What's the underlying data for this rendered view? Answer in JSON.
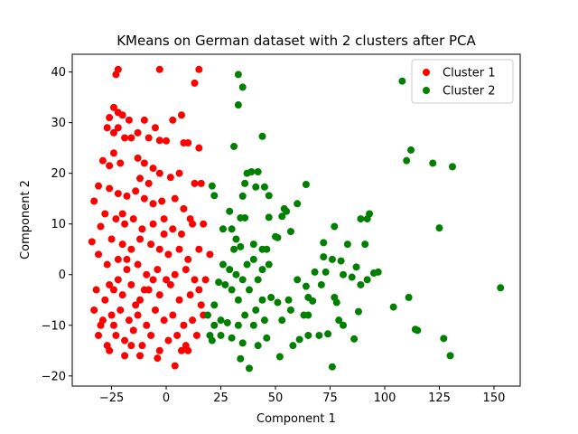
{
  "chart_data": {
    "type": "scatter",
    "title": "KMeans on German dataset with 2 clusters after PCA",
    "xlabel": "Component 1",
    "ylabel": "Component 2",
    "xlim": [
      -43,
      162
    ],
    "ylim": [
      -22,
      43.5
    ],
    "xticks": [
      {
        "value": -25,
        "label": "−25"
      },
      0,
      25,
      50,
      75,
      100,
      125,
      150
    ],
    "yticks": [
      {
        "value": -20,
        "label": "−20"
      },
      {
        "value": -10,
        "label": "−10"
      },
      0,
      10,
      20,
      30,
      40
    ],
    "legend": "upper right",
    "series": [
      {
        "name": "Cluster 1",
        "color": "#ff0000",
        "x": [
          -22,
          -23,
          -3,
          15,
          13,
          -24,
          -22,
          -20,
          -26,
          -27,
          -24,
          -22,
          -17,
          -10,
          -5,
          3,
          7,
          -19,
          -16,
          -13,
          -8,
          -3,
          0,
          8,
          10,
          15,
          -29,
          -26,
          -21,
          -13,
          -10,
          -6,
          -3,
          2,
          6,
          13,
          16,
          -31,
          -26,
          -22,
          -18,
          -14,
          -10,
          -6,
          -2,
          4,
          8,
          11,
          -33,
          -28,
          -23,
          -19,
          -15,
          -11,
          -6,
          -1,
          3,
          7,
          12,
          17,
          -30,
          -25,
          -20,
          -16,
          -12,
          -7,
          -3,
          1,
          6,
          10,
          15,
          -34,
          -31,
          -27,
          -22,
          -18,
          -13,
          -9,
          -4,
          0,
          4,
          9,
          13,
          18,
          -32,
          -28,
          -24,
          -20,
          -16,
          -12,
          -8,
          -3,
          2,
          6,
          11,
          16,
          -33,
          -29,
          -25,
          -21,
          -17,
          -13,
          -9,
          -5,
          -1,
          3,
          8,
          12,
          17,
          -31,
          -27,
          -23,
          -19,
          -15,
          -11,
          -7,
          -3,
          1,
          5,
          9,
          14,
          -26,
          -19,
          -12,
          -4,
          4,
          10,
          -30,
          -24,
          -14,
          -10,
          -6,
          -18,
          -22,
          -26,
          -20,
          -8,
          -24,
          -12,
          -1,
          -16,
          15,
          20,
          7
        ],
        "y": [
          40.5,
          39.5,
          40.5,
          40.5,
          37.8,
          33,
          32,
          31.5,
          31,
          29,
          28,
          29,
          30.5,
          30.5,
          29,
          30.5,
          31.5,
          27,
          27,
          28,
          27,
          26.5,
          26.4,
          26,
          26,
          25,
          22.5,
          21.5,
          22,
          23,
          22,
          21,
          20,
          19.2,
          20,
          18,
          18,
          17.5,
          17,
          16,
          15.5,
          16.5,
          15,
          14,
          14.5,
          15,
          13,
          11,
          14.5,
          12,
          11,
          10,
          11,
          9,
          10,
          11,
          9,
          8,
          10,
          10,
          9.5,
          7,
          6,
          5,
          7,
          6,
          5,
          4,
          5,
          3,
          5,
          6.5,
          4,
          2,
          3,
          1,
          2,
          0,
          1,
          -1,
          0,
          1,
          -1,
          -1,
          -3,
          -5,
          -3,
          -4,
          -2,
          -5,
          -3,
          -4,
          -2,
          -5,
          -4,
          -6,
          -7,
          -9,
          -8,
          -7,
          -9,
          -8,
          -10,
          -7,
          -9,
          -8,
          -10,
          -9,
          -8,
          -12,
          -14,
          -12,
          -13,
          -11,
          -14,
          -12,
          -15,
          -13,
          -12,
          -14,
          -12,
          -15,
          -16,
          -16,
          -16.5,
          -18,
          -15,
          -10,
          -10,
          -6,
          -3,
          -1,
          3,
          -1,
          -2,
          12,
          18,
          24,
          19,
          8,
          -14,
          -3,
          4,
          -15
        ]
      },
      {
        "name": "Cluster 2",
        "color": "#008000",
        "x": [
          33,
          35,
          33,
          44,
          31,
          108,
          112,
          110,
          122,
          131,
          37,
          39,
          42,
          36,
          45,
          41,
          64,
          35,
          47,
          21,
          22,
          54,
          60,
          53,
          55,
          47,
          34,
          36,
          29,
          125,
          93,
          92,
          89,
          77,
          72,
          83,
          91,
          26,
          30,
          57,
          50,
          51,
          44,
          46,
          32,
          31,
          34,
          40,
          72,
          76,
          80,
          68,
          73,
          81,
          87,
          95,
          97,
          92,
          89,
          85,
          60,
          64,
          71,
          153,
          111,
          104,
          77,
          78,
          88,
          65,
          67,
          56,
          57,
          63,
          65,
          79,
          81,
          74,
          70,
          86,
          65,
          61,
          58,
          114,
          115,
          127,
          130,
          76,
          52,
          38,
          34,
          46,
          42,
          35,
          30,
          25,
          21,
          22,
          25,
          28,
          33,
          36,
          41,
          44,
          48,
          51,
          53,
          45,
          40,
          24,
          27,
          30,
          33,
          35,
          38,
          42,
          26,
          29,
          32,
          37,
          40,
          44,
          47,
          22,
          19,
          20
        ],
        "y": [
          39.5,
          37,
          33.5,
          27.3,
          25.3,
          38.2,
          24.6,
          22.5,
          22,
          21.3,
          20,
          20.3,
          20.3,
          18,
          17.3,
          17.3,
          17.8,
          15.5,
          15.6,
          17.5,
          15.6,
          13,
          14,
          11.5,
          12.5,
          11.3,
          11.2,
          11.2,
          12.5,
          9.2,
          12,
          11,
          11,
          9.5,
          6.3,
          6,
          6,
          9,
          9,
          8.5,
          7.5,
          7.3,
          5,
          5,
          7,
          5,
          5.5,
          6,
          3.5,
          3,
          2.7,
          0.5,
          0.5,
          0,
          1.5,
          0.3,
          0.5,
          -1,
          -2,
          -0.5,
          -1,
          -2.3,
          -2,
          -2.6,
          -4.5,
          -6.4,
          -4.5,
          -5.5,
          -7.3,
          -4.5,
          -5.2,
          -5,
          -7,
          -8,
          -8,
          -9,
          -10,
          -11.7,
          -12,
          -12.7,
          -12,
          -12.8,
          -14,
          -10.8,
          -11,
          -12.6,
          -16,
          -18.2,
          -16.2,
          -18.5,
          -16.6,
          -12.5,
          -14,
          -13.5,
          -12.5,
          -12,
          -13,
          -10,
          -9,
          -9.5,
          -10,
          -8,
          -7,
          -5,
          -4.5,
          -5.5,
          -9,
          -9,
          -10,
          -1.5,
          -2,
          -3,
          -5,
          -1,
          -3,
          -1,
          2,
          1,
          0,
          2,
          3,
          1,
          2,
          -6,
          -8,
          -12
        ]
      }
    ]
  }
}
